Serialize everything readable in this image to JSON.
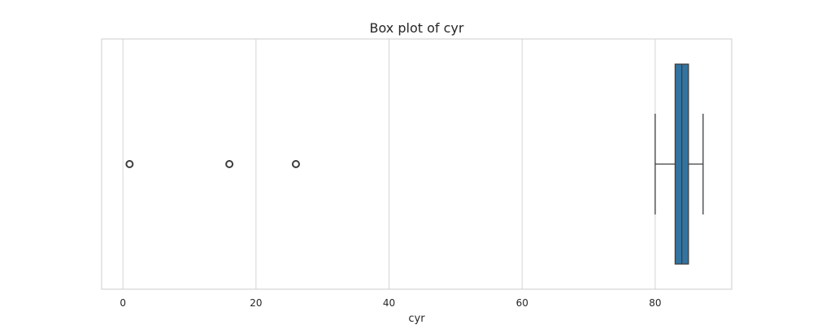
{
  "chart_data": {
    "type": "box",
    "title": "Box plot of cyr",
    "xlabel": "cyr",
    "ylabel": "",
    "orientation": "horizontal",
    "xlim": [
      -3.2,
      91.5
    ],
    "x_ticks": [
      0,
      20,
      40,
      60,
      80
    ],
    "x_tick_labels": [
      "0",
      "20",
      "40",
      "60",
      "80"
    ],
    "grid": "vertical",
    "box": {
      "whisker_low": 80.0,
      "q1": 83.0,
      "median": 84.0,
      "q3": 85.0,
      "whisker_high": 87.2
    },
    "outliers": [
      1.0,
      16.0,
      26.0
    ],
    "colors": {
      "box_fill": "#3274a1",
      "line": "#3d3d3d",
      "grid": "#d5d5d5",
      "frame": "#cccccc"
    }
  }
}
